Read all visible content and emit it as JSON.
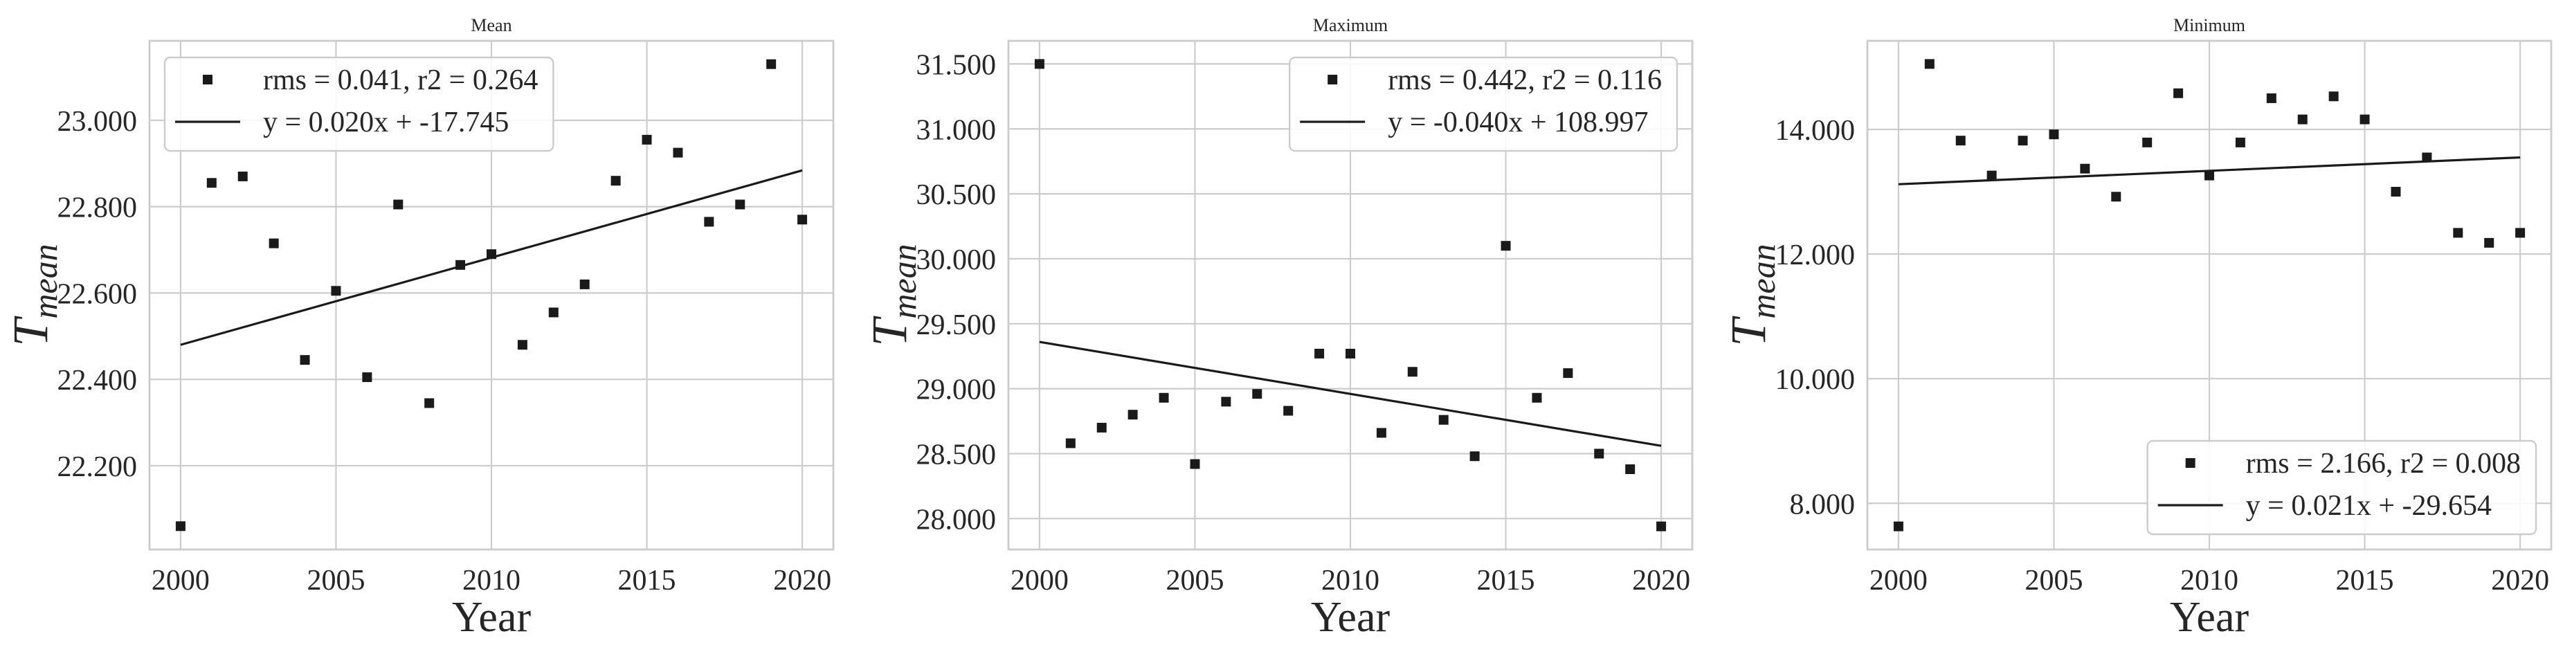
{
  "colors": {
    "marker": "#1a1a1a",
    "line": "#1a1a1a",
    "grid": "#cccccc",
    "spine": "#cccccc",
    "legend_edge": "#cccccc",
    "legend_face": "#ffffff",
    "text": "#262626",
    "background": "#ffffff"
  },
  "chart_data": [
    {
      "type": "scatter",
      "title": "Mean",
      "xlabel": "Year",
      "ylabel_main": "T",
      "ylabel_sub": "mean",
      "grid": true,
      "x": [
        2000,
        2001,
        2002,
        2003,
        2004,
        2005,
        2006,
        2007,
        2008,
        2009,
        2010,
        2011,
        2012,
        2013,
        2014,
        2015,
        2016,
        2017,
        2018,
        2019,
        2020
      ],
      "y": [
        22.06,
        22.855,
        22.87,
        22.715,
        22.445,
        22.605,
        22.405,
        22.805,
        22.345,
        22.665,
        22.69,
        22.48,
        22.555,
        22.62,
        22.86,
        22.955,
        22.925,
        22.765,
        22.805,
        23.13,
        22.77
      ],
      "xlim": [
        1999,
        2021
      ],
      "ylim": [
        22.006,
        23.184
      ],
      "xticks": [
        2000,
        2005,
        2010,
        2015,
        2020
      ],
      "xtick_labels": [
        "2000",
        "2005",
        "2010",
        "2015",
        "2020"
      ],
      "yticks": [
        22.2,
        22.4,
        22.6,
        22.8,
        23.0
      ],
      "ytick_labels": [
        "22.200",
        "22.400",
        "22.600",
        "22.800",
        "23.000"
      ],
      "fit_line": {
        "x": [
          2000,
          2020
        ],
        "y": [
          22.48,
          22.884
        ]
      },
      "legend": {
        "loc": "upper left",
        "entries": [
          {
            "marker": "square",
            "label": "rms = 0.041, r2 = 0.264"
          },
          {
            "marker": "line",
            "label": "y = 0.020x + -17.745"
          }
        ]
      }
    },
    {
      "type": "scatter",
      "title": "Maximum",
      "xlabel": "Year",
      "ylabel_main": "T",
      "ylabel_sub": "mean",
      "grid": true,
      "x": [
        2000,
        2001,
        2002,
        2003,
        2004,
        2005,
        2006,
        2007,
        2008,
        2009,
        2010,
        2011,
        2012,
        2013,
        2014,
        2015,
        2016,
        2017,
        2018,
        2019,
        2020
      ],
      "y": [
        31.5,
        28.58,
        28.7,
        28.8,
        28.93,
        28.42,
        28.9,
        28.96,
        28.83,
        29.27,
        29.27,
        28.66,
        29.13,
        28.76,
        28.48,
        30.1,
        28.93,
        29.12,
        28.5,
        28.38,
        27.94
      ],
      "xlim": [
        1999,
        2021
      ],
      "ylim": [
        27.762,
        31.678
      ],
      "xticks": [
        2000,
        2005,
        2010,
        2015,
        2020
      ],
      "xtick_labels": [
        "2000",
        "2005",
        "2010",
        "2015",
        "2020"
      ],
      "yticks": [
        28.0,
        28.5,
        29.0,
        29.5,
        30.0,
        30.5,
        31.0,
        31.5
      ],
      "ytick_labels": [
        "28.000",
        "28.500",
        "29.000",
        "29.500",
        "30.000",
        "30.500",
        "31.000",
        "31.500"
      ],
      "fit_line": {
        "x": [
          2000,
          2020
        ],
        "y": [
          29.36,
          28.56
        ]
      },
      "legend": {
        "loc": "upper right",
        "entries": [
          {
            "marker": "square",
            "label": "rms = 0.442, r2 = 0.116"
          },
          {
            "marker": "line",
            "label": "y = -0.040x + 108.997"
          }
        ]
      }
    },
    {
      "type": "scatter",
      "title": "Minimum",
      "xlabel": "Year",
      "ylabel_main": "T",
      "ylabel_sub": "mean",
      "grid": true,
      "x": [
        2000,
        2001,
        2002,
        2003,
        2004,
        2005,
        2006,
        2007,
        2008,
        2009,
        2010,
        2011,
        2012,
        2013,
        2014,
        2015,
        2016,
        2017,
        2018,
        2019,
        2020
      ],
      "y": [
        7.63,
        15.05,
        13.82,
        13.26,
        13.82,
        13.92,
        13.37,
        12.92,
        13.79,
        14.58,
        13.26,
        13.79,
        14.5,
        14.16,
        14.53,
        14.16,
        13.0,
        13.55,
        12.34,
        12.18,
        12.34
      ],
      "xlim": [
        1999,
        2021
      ],
      "ylim": [
        7.259,
        15.421
      ],
      "xticks": [
        2000,
        2005,
        2010,
        2015,
        2020
      ],
      "xtick_labels": [
        "2000",
        "2005",
        "2010",
        "2015",
        "2020"
      ],
      "yticks": [
        8,
        10,
        12,
        14
      ],
      "ytick_labels": [
        "8.000",
        "10.000",
        "12.000",
        "14.000"
      ],
      "fit_line": {
        "x": [
          2000,
          2020
        ],
        "y": [
          13.12,
          13.55
        ]
      },
      "legend": {
        "loc": "lower right",
        "entries": [
          {
            "marker": "square",
            "label": "rms = 2.166, r2 = 0.008"
          },
          {
            "marker": "line",
            "label": "y = 0.021x + -29.654"
          }
        ]
      }
    }
  ]
}
